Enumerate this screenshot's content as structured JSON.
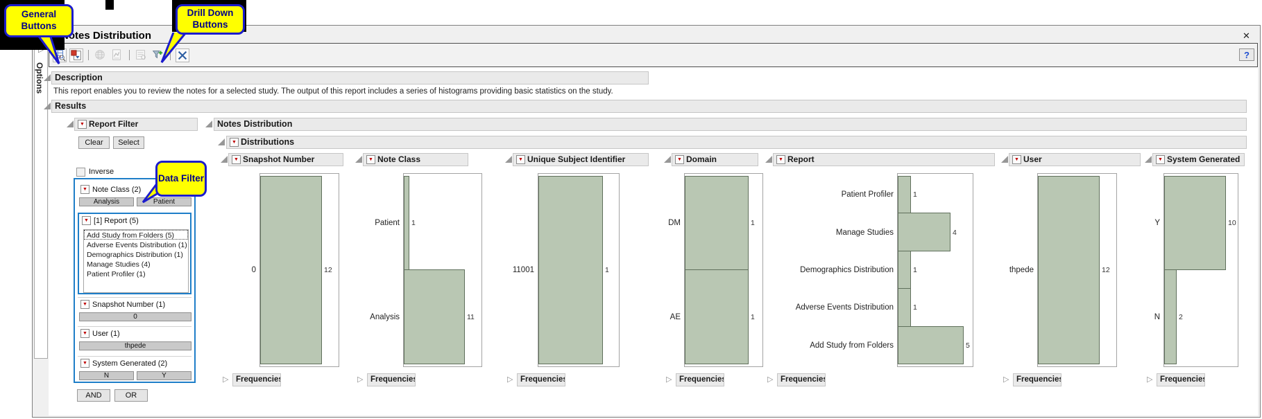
{
  "colors": {
    "bar_fill": "#b9c7b3",
    "bar_border": "#5f6f5b",
    "filter_highlight": "#1e7ec8",
    "callout_bg": "#ffff00",
    "callout_border": "#1c1ccd",
    "callout_text": "#00008b",
    "red_triangle": "#c00000"
  },
  "annotations": {
    "general_buttons": "General Buttons",
    "drill_down_buttons": "Drill Down Buttons",
    "data_filter": "Data Filter"
  },
  "window": {
    "title": "Notes Distribution",
    "close_glyph": "✕",
    "help_glyph": "?",
    "sidebar_label": "Options",
    "sidebar_expand_glyph": "▷"
  },
  "toolbar": {
    "icons": [
      {
        "name": "summary-table-icon",
        "enabled": true
      },
      {
        "name": "save-report-icon",
        "enabled": true
      },
      {
        "name": "web-report-icon",
        "enabled": false
      },
      {
        "name": "journal-icon",
        "enabled": false
      },
      {
        "name": "notes-icon",
        "enabled": false
      },
      {
        "name": "drill-down-filter-icon",
        "enabled": true
      },
      {
        "name": "close-report-icon",
        "enabled": true
      }
    ]
  },
  "description": {
    "header": "Description",
    "text": "This report enables you to review the notes for a selected study. The output of this report includes a series of histograms providing basic statistics on the study."
  },
  "results": {
    "header": "Results"
  },
  "report_filter": {
    "header": "Report Filter",
    "clear_label": "Clear",
    "select_label": "Select",
    "inverse_label": "Inverse",
    "and_label": "AND",
    "or_label": "OR",
    "groups": [
      {
        "label": "Note Class (2)",
        "buttons": [
          "Analysis",
          "Patient"
        ]
      },
      {
        "label": "[1] Report (5)",
        "list": [
          "Add Study from Folders (5)",
          "Adverse Events Distribution (1)",
          "Demographics Distribution (1)",
          "Manage Studies (4)",
          "Patient Profiler (1)"
        ],
        "selected_index": 0
      },
      {
        "label": "Snapshot Number (1)",
        "buttons": [
          "0"
        ]
      },
      {
        "label": "User (1)",
        "buttons": [
          "thpede"
        ]
      },
      {
        "label": "System Generated (2)",
        "buttons": [
          "N",
          "Y"
        ]
      }
    ]
  },
  "notes_distribution": {
    "header": "Notes Distribution",
    "distributions_header": "Distributions",
    "frequencies_label": "Frequencies"
  },
  "chart_data": [
    {
      "type": "bar",
      "orientation": "horizontal",
      "title": "Snapshot Number",
      "categories": [
        "0"
      ],
      "values": [
        12
      ],
      "value_labels_shown": true
    },
    {
      "type": "bar",
      "orientation": "horizontal",
      "title": "Note Class",
      "categories": [
        "Patient",
        "Analysis"
      ],
      "values": [
        1,
        11
      ],
      "value_labels_shown": true
    },
    {
      "type": "bar",
      "orientation": "horizontal",
      "title": "Unique Subject Identifier",
      "categories": [
        "11001"
      ],
      "values": [
        1
      ],
      "value_labels_shown": true
    },
    {
      "type": "bar",
      "orientation": "horizontal",
      "title": "Domain",
      "categories": [
        "DM",
        "AE"
      ],
      "values": [
        1,
        1
      ],
      "value_labels_shown": true
    },
    {
      "type": "bar",
      "orientation": "horizontal",
      "title": "Report",
      "categories": [
        "Patient Profiler",
        "Manage Studies",
        "Demographics Distribution",
        "Adverse Events Distribution",
        "Add Study from Folders"
      ],
      "values": [
        1,
        4,
        1,
        1,
        5
      ],
      "value_labels_shown": true
    },
    {
      "type": "bar",
      "orientation": "horizontal",
      "title": "User",
      "categories": [
        "thpede"
      ],
      "values": [
        12
      ],
      "value_labels_shown": true
    },
    {
      "type": "bar",
      "orientation": "horizontal",
      "title": "System Generated",
      "categories": [
        "Y",
        "N"
      ],
      "values": [
        10,
        2
      ],
      "value_labels_shown": true
    }
  ]
}
